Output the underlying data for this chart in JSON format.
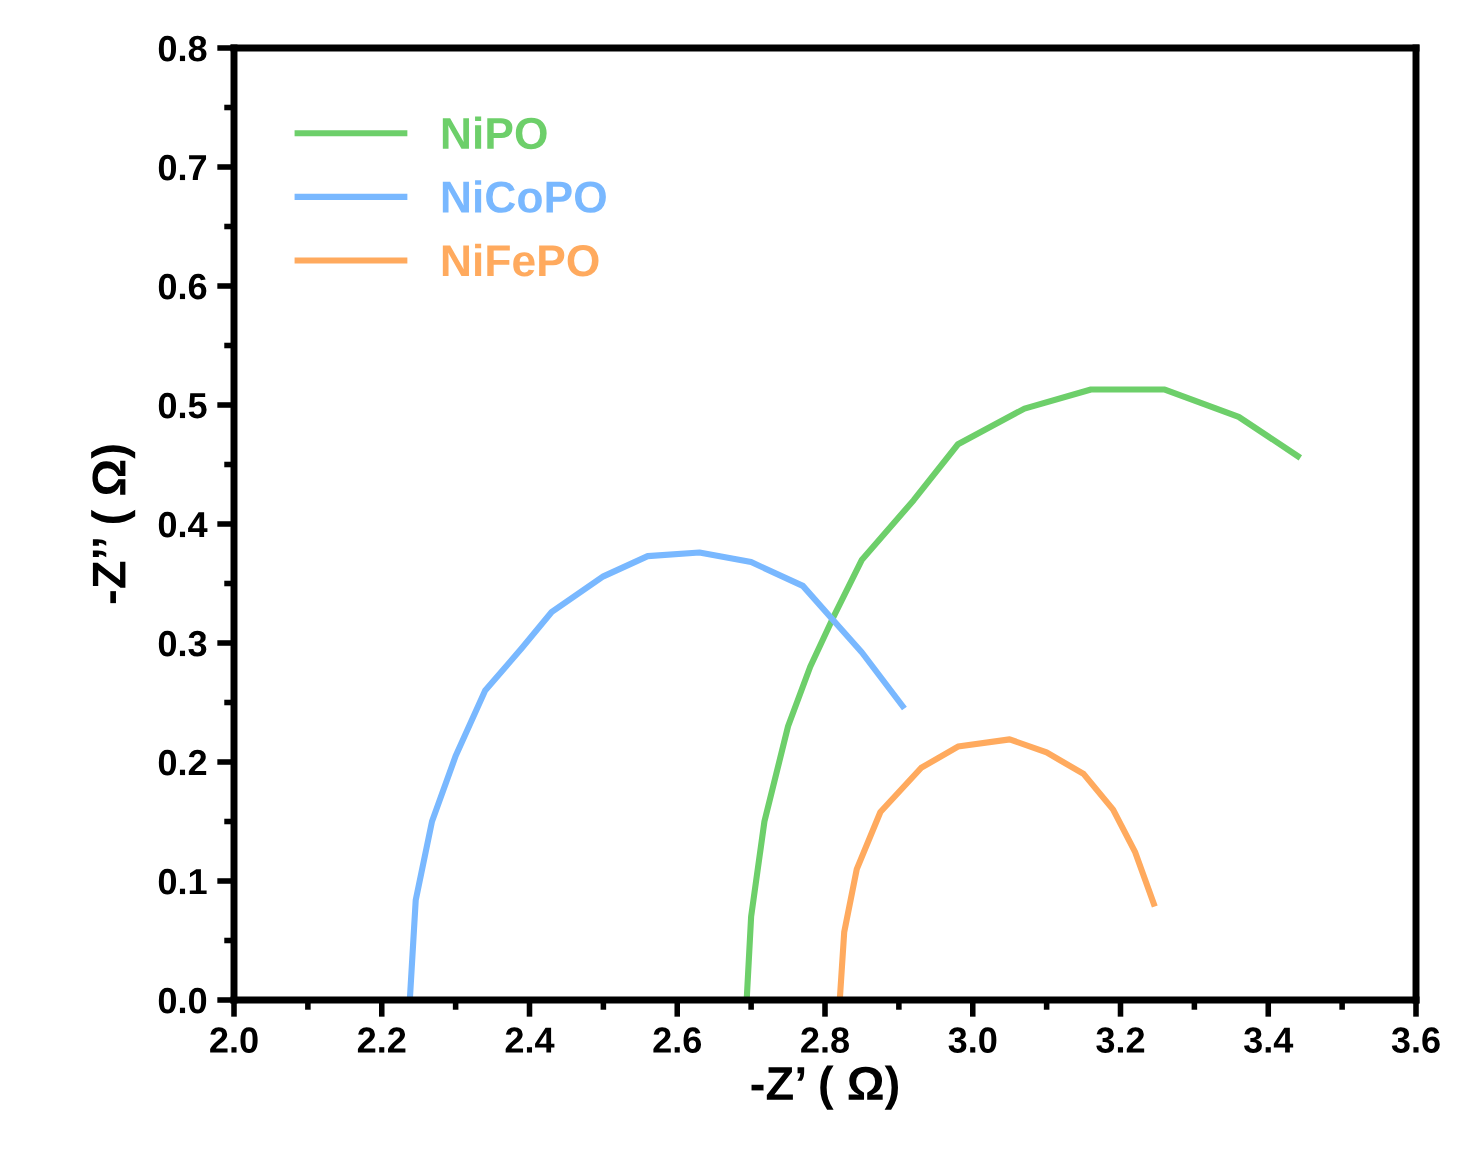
{
  "chart_data": {
    "type": "line",
    "xlabel": "-Z’ ( Ω)",
    "ylabel": "-Z’’ ( Ω)",
    "xlim": [
      2.0,
      3.6
    ],
    "ylim": [
      0.0,
      0.8
    ],
    "xticks": [
      {
        "value": 2.0,
        "label": "2.0"
      },
      {
        "value": 2.2,
        "label": "2.2"
      },
      {
        "value": 2.4,
        "label": "2.4"
      },
      {
        "value": 2.6,
        "label": "2.6"
      },
      {
        "value": 2.8,
        "label": "2.8"
      },
      {
        "value": 3.0,
        "label": "3.0"
      },
      {
        "value": 3.2,
        "label": "3.2"
      },
      {
        "value": 3.4,
        "label": "3.4"
      },
      {
        "value": 3.6,
        "label": "3.6"
      }
    ],
    "yticks": [
      {
        "value": 0.0,
        "label": "0.0"
      },
      0.1,
      0.2,
      0.3,
      0.4,
      0.5,
      0.6,
      0.7,
      0.8
    ],
    "grid": false,
    "legend": "top left",
    "marker": "none",
    "line_style": "solid",
    "series": [
      {
        "name": "NiPO",
        "color": "#6dcf6a",
        "x": [
          2.694,
          2.7,
          2.718,
          2.75,
          2.78,
          2.81,
          2.85,
          2.92,
          2.98,
          3.07,
          3.16,
          3.26,
          3.36,
          3.44
        ],
        "values": [
          0,
          0.07,
          0.15,
          0.23,
          0.28,
          0.32,
          0.37,
          0.42,
          0.467,
          0.497,
          0.513,
          0.513,
          0.49,
          0.457
        ]
      },
      {
        "name": "NiCoPO",
        "color": "#79b8ff",
        "x": [
          2.238,
          2.246,
          2.268,
          2.3,
          2.34,
          2.39,
          2.43,
          2.5,
          2.56,
          2.63,
          2.7,
          2.77,
          2.81,
          2.85,
          2.905
        ],
        "values": [
          0,
          0.084,
          0.15,
          0.205,
          0.26,
          0.296,
          0.326,
          0.356,
          0.373,
          0.376,
          0.368,
          0.348,
          0.32,
          0.292,
          0.247
        ]
      },
      {
        "name": "NiFePO",
        "color": "#ffaa5e",
        "x": [
          2.82,
          2.826,
          2.843,
          2.875,
          2.93,
          2.98,
          3.05,
          3.1,
          3.15,
          3.19,
          3.22,
          3.245
        ],
        "values": [
          0,
          0.057,
          0.11,
          0.158,
          0.195,
          0.213,
          0.219,
          0.208,
          0.19,
          0.16,
          0.124,
          0.081
        ]
      }
    ]
  }
}
